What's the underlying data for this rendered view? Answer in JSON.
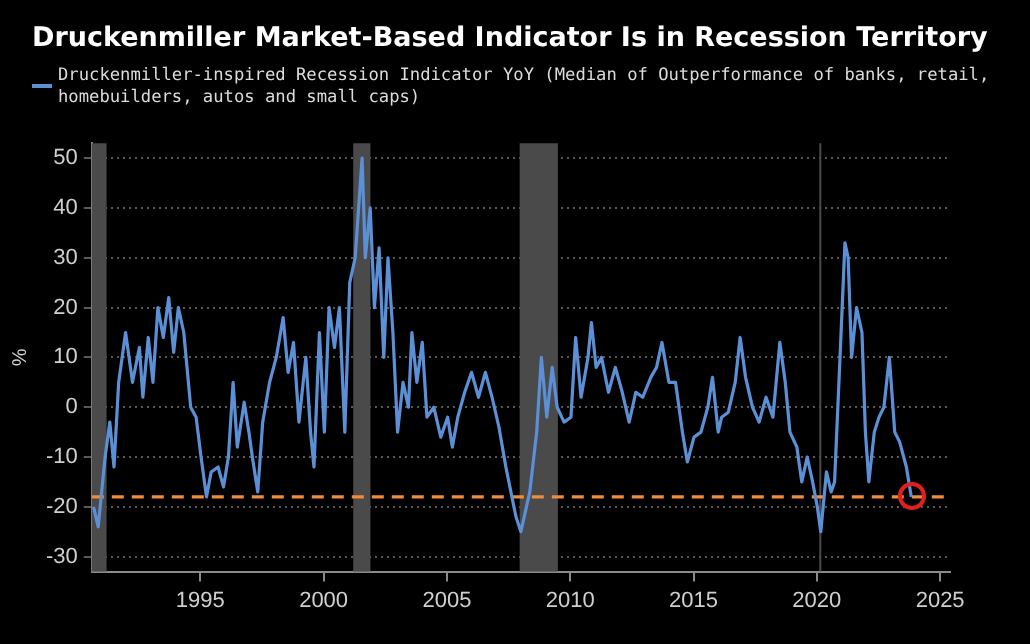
{
  "chart_data": {
    "type": "line",
    "title": "Druckenmiller Market-Based Indicator Is in Recession Territory",
    "ylabel": "%",
    "legend": "top",
    "series": [
      {
        "name": "Druckenmiller-inspired Recession Indicator YoY (Median of Outperformance of banks, retail, homebuilders, autos and small caps)",
        "color": "#5b8fd6",
        "x": [
          1990.67,
          1990.86,
          1991.14,
          1991.33,
          1991.5,
          1991.69,
          1991.97,
          1992.25,
          1992.53,
          1992.67,
          1992.89,
          1993.08,
          1993.28,
          1993.5,
          1993.72,
          1993.92,
          1994.11,
          1994.33,
          1994.61,
          1994.83,
          1995.03,
          1995.25,
          1995.44,
          1995.72,
          1995.94,
          1996.14,
          1996.33,
          1996.5,
          1996.78,
          1996.97,
          1997.11,
          1997.33,
          1997.53,
          1997.81,
          1998.08,
          1998.36,
          1998.56,
          1998.78,
          1999.0,
          1999.28,
          1999.47,
          1999.61,
          1999.83,
          2000.03,
          2000.22,
          2000.44,
          2000.64,
          2000.86,
          2001.06,
          2001.28,
          2001.56,
          2001.69,
          2001.89,
          2002.06,
          2002.25,
          2002.44,
          2002.61,
          2002.81,
          2003.0,
          2003.22,
          2003.44,
          2003.58,
          2003.78,
          2004.0,
          2004.19,
          2004.47,
          2004.75,
          2005.03,
          2005.22,
          2005.44,
          2005.72,
          2006.0,
          2006.28,
          2006.56,
          2006.83,
          2007.11,
          2007.39,
          2007.8,
          2008.0,
          2008.36,
          2008.64,
          2008.83,
          2009.05,
          2009.27,
          2009.47,
          2009.75,
          2010.03,
          2010.22,
          2010.44,
          2010.72,
          2010.86,
          2011.05,
          2011.27,
          2011.55,
          2011.83,
          2012.11,
          2012.39,
          2012.66,
          2012.94,
          2013.27,
          2013.5,
          2013.72,
          2014.0,
          2014.27,
          2014.55,
          2014.75,
          2015.02,
          2015.3,
          2015.58,
          2015.77,
          2016.0,
          2016.14,
          2016.41,
          2016.69,
          2016.89,
          2017.11,
          2017.39,
          2017.66,
          2017.94,
          2018.22,
          2018.5,
          2018.72,
          2018.91,
          2019.19,
          2019.39,
          2019.61,
          2019.83,
          2020.02,
          2020.16,
          2020.39,
          2020.58,
          2020.72,
          2020.94,
          2021.14,
          2021.27,
          2021.41,
          2021.61,
          2021.83,
          2021.97,
          2022.11,
          2022.33,
          2022.52,
          2022.72,
          2022.94,
          2023.16,
          2023.36,
          2023.63,
          2023.83
        ],
        "values": [
          -20,
          -24,
          -10,
          -3,
          -12,
          5,
          15,
          5,
          12,
          2,
          14,
          5,
          20,
          14,
          22,
          11,
          20,
          15,
          0,
          -2,
          -10,
          -18,
          -13,
          -12,
          -16,
          -10,
          5,
          -8,
          1,
          -5,
          -10,
          -17,
          -3,
          5,
          10,
          18,
          7,
          13,
          -3,
          10,
          -5,
          -12,
          15,
          -5,
          20,
          12,
          20,
          -5,
          25,
          30,
          50,
          30,
          40,
          20,
          32,
          10,
          30,
          15,
          -5,
          5,
          0,
          15,
          5,
          13,
          -2,
          0,
          -6,
          -2,
          -8,
          -2,
          3,
          7,
          2,
          7,
          2,
          -4,
          -12,
          -22,
          -25,
          -17,
          -5,
          10,
          -2,
          8,
          0,
          -3,
          -2,
          14,
          2,
          10,
          17,
          8,
          10,
          3,
          8,
          3,
          -3,
          3,
          2,
          6,
          8,
          13,
          5,
          5,
          -5,
          -11,
          -6,
          -5,
          0,
          6,
          -5,
          -2,
          -1,
          5,
          14,
          6,
          0,
          -3,
          2,
          -2,
          13,
          5,
          -5,
          -8,
          -15,
          -10,
          -15,
          -20,
          -25,
          -13,
          -17,
          -15,
          10,
          33,
          30,
          10,
          20,
          15,
          -5,
          -15,
          -5,
          -2,
          0,
          10,
          -5,
          -7,
          -12,
          -18
        ]
      }
    ],
    "xlim": [
      1990.6,
      2025.4
    ],
    "xticks": [
      1995,
      2000,
      2005,
      2010,
      2015,
      2020,
      2025
    ],
    "ylim": [
      -33,
      53
    ],
    "yticks": [
      -30,
      -20,
      -10,
      0,
      10,
      20,
      30,
      40,
      50
    ],
    "grid": "y",
    "marker": "none",
    "line_style": "solid",
    "ref_lines": [
      {
        "axis": "y",
        "value": -18,
        "color": "#f08c3a",
        "line_style": "dashed"
      }
    ],
    "bands": [
      {
        "axis": "x",
        "from": 1990.6,
        "to": 1991.2,
        "color": "#4a4a4a"
      },
      {
        "axis": "x",
        "from": 2001.2,
        "to": 2001.9,
        "color": "#4a4a4a"
      },
      {
        "axis": "x",
        "from": 2007.95,
        "to": 2009.5,
        "color": "#4a4a4a"
      },
      {
        "axis": "x",
        "from": 2020.1,
        "to": 2020.18,
        "color": "#4a4a4a"
      }
    ]
  }
}
